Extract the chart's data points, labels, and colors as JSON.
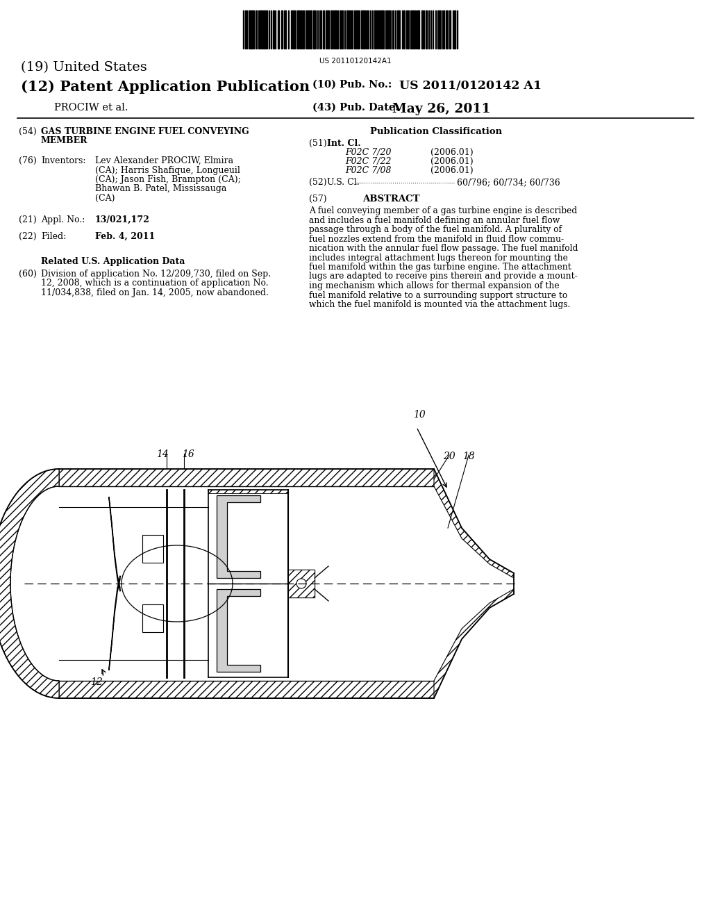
{
  "bg_color": "#ffffff",
  "barcode_text": "US 20110120142A1",
  "title_19": "(19) United States",
  "title_12": "(12) Patent Application Publication",
  "assignee": "PROCIW et al.",
  "pub_no_label": "(10) Pub. No.:",
  "pub_no": "US 2011/0120142 A1",
  "pub_date_label": "(43) Pub. Date:",
  "pub_date": "May 26, 2011",
  "field54_label": "(54)",
  "field54_line1": "GAS TURBINE ENGINE FUEL CONVEYING",
  "field54_line2": "MEMBER",
  "field76_label": "(76)",
  "field76_title": "Inventors:",
  "field76_lines": [
    "Lev Alexander PROCIW, Elmira",
    "(CA); Harris Shafique, Longueuil",
    "(CA); Jason Fish, Brampton (CA);",
    "Bhawan B. Patel, Mississauga",
    "(CA)"
  ],
  "field21_label": "(21)",
  "field21_title": "Appl. No.:",
  "field21_content": "13/021,172",
  "field22_label": "(22)",
  "field22_title": "Filed:",
  "field22_content": "Feb. 4, 2011",
  "related_title": "Related U.S. Application Data",
  "field60_label": "(60)",
  "field60_lines": [
    "Division of application No. 12/209,730, filed on Sep.",
    "12, 2008, which is a continuation of application No.",
    "11/034,838, filed on Jan. 14, 2005, now abandoned."
  ],
  "pub_class_title": "Publication Classification",
  "field51_label": "(51)",
  "field51_title": "Int. Cl.",
  "field51_rows": [
    [
      "F02C 7/20",
      "(2006.01)"
    ],
    [
      "F02C 7/22",
      "(2006.01)"
    ],
    [
      "F02C 7/08",
      "(2006.01)"
    ]
  ],
  "field52_label": "(52)",
  "field52_title": "U.S. Cl.",
  "field52_content": "60/796; 60/734; 60/736",
  "field57_label": "(57)",
  "field57_title": "ABSTRACT",
  "abstract_lines": [
    "A fuel conveying member of a gas turbine engine is described",
    "and includes a fuel manifold defining an annular fuel flow",
    "passage through a body of the fuel manifold. A plurality of",
    "fuel nozzles extend from the manifold in fluid flow commu-",
    "nication with the annular fuel flow passage. The fuel manifold",
    "includes integral attachment lugs thereon for mounting the",
    "fuel manifold within the gas turbine engine. The attachment",
    "lugs are adapted to receive pins therein and provide a mount-",
    "ing mechanism which allows for thermal expansion of the",
    "fuel manifold relative to a surrounding support structure to",
    "which the fuel manifold is mounted via the attachment lugs."
  ],
  "label_10": "10",
  "label_12": "12",
  "label_14": "14",
  "label_16": "16",
  "label_18": "18",
  "label_20": "20"
}
